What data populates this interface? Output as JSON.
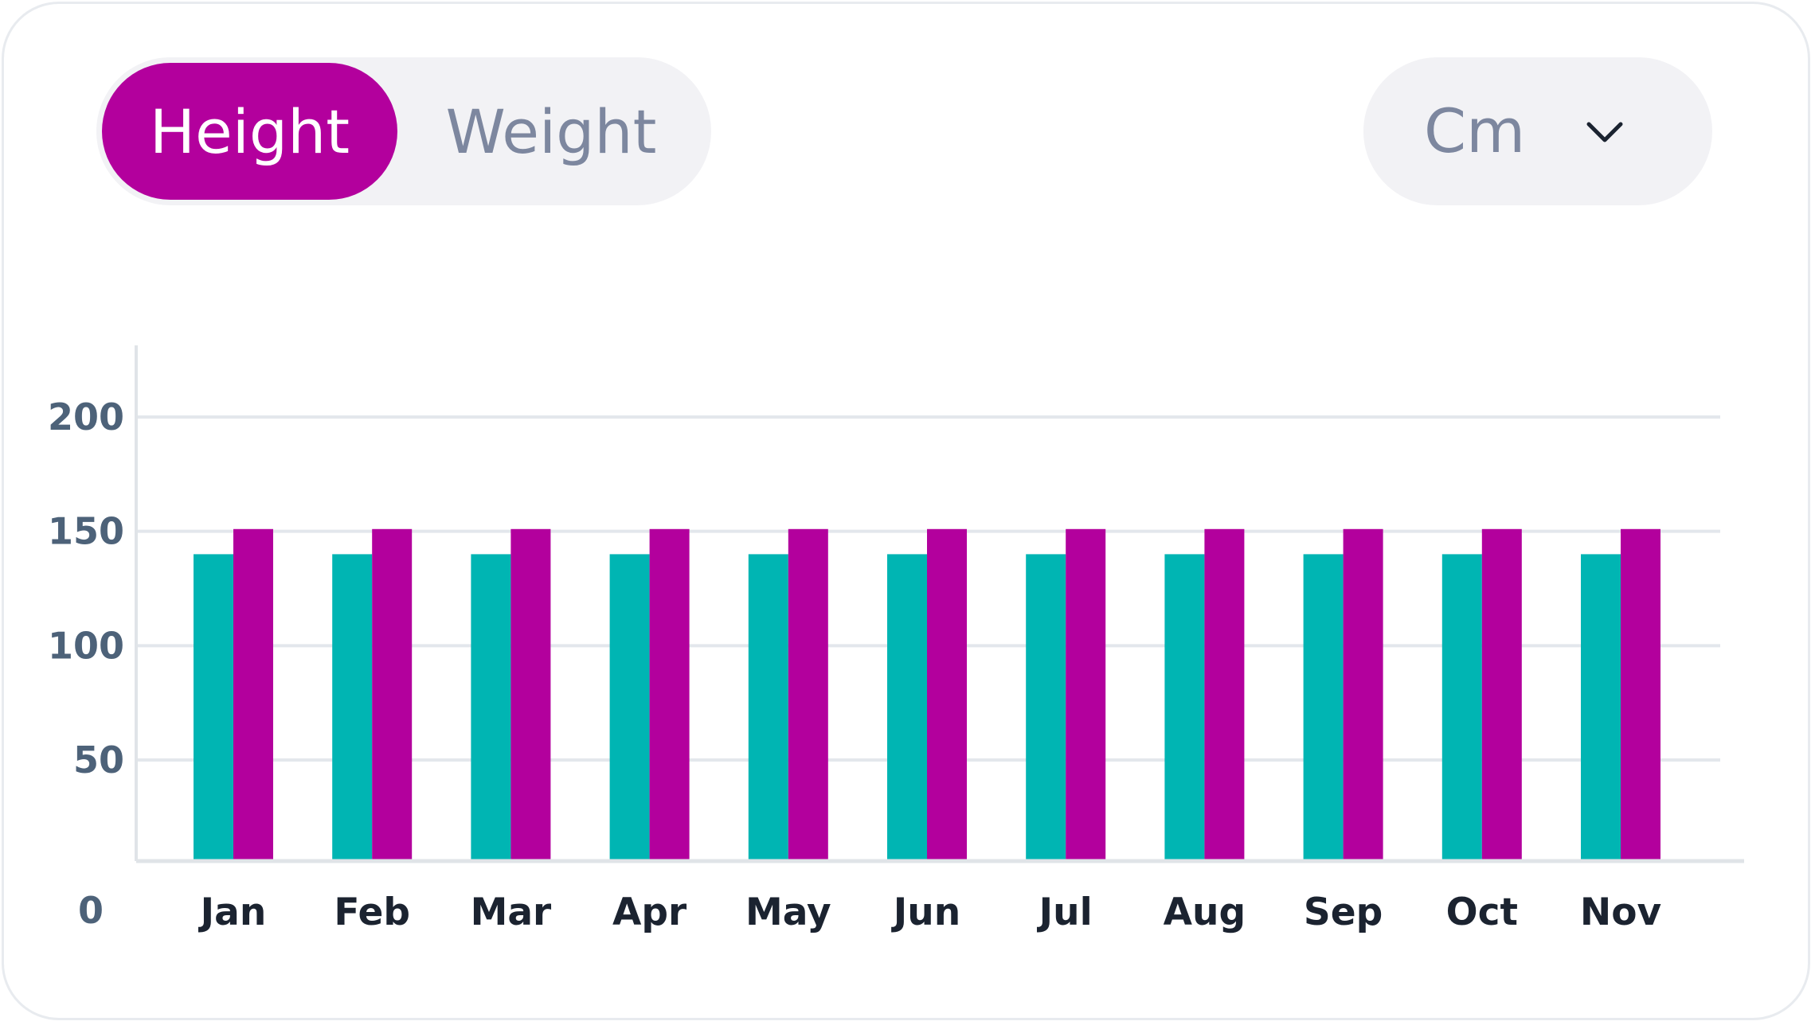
{
  "toggle": {
    "options": [
      {
        "label": "Height",
        "active": true
      },
      {
        "label": "Weight",
        "active": false
      }
    ]
  },
  "unit_select": {
    "value": "Cm",
    "icon": "chevron-down-icon"
  },
  "colors": {
    "accent": "#b3009d",
    "teal": "#00b5b3",
    "grid": "#e3e7ec",
    "axis": "#e0e4e8"
  },
  "chart_data": {
    "type": "bar",
    "categories": [
      "Jan",
      "Feb",
      "Mar",
      "Apr",
      "May",
      "Jun",
      "Jul",
      "Aug",
      "Sep",
      "Oct",
      "Nov"
    ],
    "series": [
      {
        "color": "#00b5b3",
        "values": [
          140,
          140,
          140,
          140,
          140,
          140,
          140,
          140,
          140,
          140,
          140
        ]
      },
      {
        "color": "#b3009d",
        "values": [
          151,
          151,
          151,
          151,
          151,
          151,
          151,
          151,
          151,
          151,
          151
        ]
      }
    ],
    "yticks": [
      0,
      50,
      100,
      150,
      200
    ],
    "ylim": [
      0,
      230
    ],
    "grid": true,
    "legend": "none",
    "title": "",
    "xlabel": "",
    "ylabel": ""
  }
}
